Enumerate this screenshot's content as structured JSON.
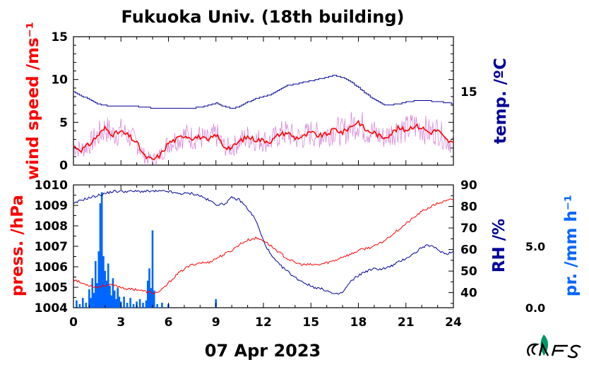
{
  "title": "Fukuoka Univ. (18th building)",
  "date_label": "07 Apr 2023",
  "colors": {
    "wind": "#ff0000",
    "wind_raw": "#cc66cc",
    "temp": "#000099",
    "press": "#ff0000",
    "rh": "#000099",
    "precip": "#0066ff",
    "logo": "#009966"
  },
  "chart_data": [
    {
      "type": "line",
      "panel": "top",
      "ylabel_left": "wind speed /ms⁻¹",
      "ylabel_right": "temp. /ºC",
      "xlim": [
        0,
        24
      ],
      "xticks": [
        0,
        3,
        6,
        9,
        12,
        15,
        18,
        21,
        24
      ],
      "ylim_left": [
        0,
        15
      ],
      "yticks_left": [
        0,
        5,
        10,
        15
      ],
      "yticks_right": [
        15
      ],
      "grid": false,
      "series": [
        {
          "axis": "left",
          "x": [
            0,
            0.5,
            1,
            1.5,
            2,
            2.5,
            3,
            3.5,
            4,
            4.5,
            5,
            5.5,
            6,
            6.5,
            7,
            7.5,
            8,
            8.5,
            9,
            9.5,
            10,
            10.5,
            11,
            11.5,
            12,
            12.5,
            13,
            13.5,
            14,
            14.5,
            15,
            15.5,
            16,
            16.5,
            17,
            17.5,
            18,
            18.5,
            19,
            19.5,
            20,
            20.5,
            21,
            21.5,
            22,
            22.5,
            23,
            23.5,
            24
          ],
          "values": [
            2.2,
            1.8,
            2.4,
            3.4,
            4.3,
            3.6,
            3.9,
            3.4,
            2.6,
            1.0,
            0.6,
            1.2,
            2.6,
            3.0,
            3.5,
            3.2,
            3.3,
            2.8,
            3.6,
            2.2,
            2.0,
            2.8,
            3.3,
            3.0,
            2.9,
            2.8,
            3.6,
            3.8,
            3.2,
            3.3,
            3.8,
            3.4,
            3.6,
            4.2,
            3.8,
            4.5,
            5.1,
            4.0,
            3.8,
            3.2,
            3.6,
            4.3,
            4.1,
            4.6,
            4.4,
            3.8,
            4.1,
            3.0,
            2.5
          ]
        },
        {
          "axis": "right",
          "x": [
            0,
            0.5,
            1,
            1.5,
            2,
            2.5,
            3,
            3.5,
            4,
            4.5,
            5,
            5.5,
            6,
            6.5,
            7,
            7.5,
            8,
            8.5,
            9,
            9.5,
            10,
            10.5,
            11,
            11.5,
            12,
            12.5,
            13,
            13.5,
            14,
            14.5,
            15,
            15.5,
            16,
            16.5,
            17,
            17.5,
            18,
            18.5,
            19,
            19.5,
            20,
            20.5,
            21,
            21.5,
            22,
            22.5,
            23,
            23.5,
            24
          ],
          "values": [
            15.0,
            14.2,
            13.6,
            12.8,
            12.5,
            12.4,
            12.4,
            12.3,
            12.3,
            12.2,
            12.0,
            12.0,
            12.0,
            12.0,
            12.0,
            12.0,
            12.2,
            12.5,
            12.9,
            12.3,
            12.0,
            12.3,
            13.1,
            13.8,
            14.1,
            14.5,
            15.4,
            16.1,
            16.4,
            16.7,
            17.0,
            17.3,
            17.6,
            18.0,
            17.5,
            16.8,
            15.7,
            14.6,
            13.5,
            12.7,
            12.6,
            12.8,
            13.1,
            13.3,
            13.4,
            13.3,
            13.2,
            13.0,
            12.8
          ]
        }
      ]
    },
    {
      "type": "line",
      "panel": "bottom",
      "xlabel": "07 Apr 2023",
      "ylabel_left": "press. /hPa",
      "ylabel_right": "RH /%",
      "ylabel_right2": "pr. /mm h⁻¹",
      "xlim": [
        0,
        24
      ],
      "xticks": [
        0,
        3,
        6,
        9,
        12,
        15,
        18,
        21,
        24
      ],
      "ylim_left": [
        1004,
        1010
      ],
      "yticks_left": [
        1004,
        1005,
        1006,
        1007,
        1008,
        1009,
        1010
      ],
      "ylim_right": [
        33,
        90
      ],
      "yticks_right": [
        40,
        50,
        60,
        70,
        80,
        90
      ],
      "ylim_right2": [
        0,
        10
      ],
      "yticks_right2": [
        "0.0",
        "5.0"
      ],
      "grid": false,
      "series": [
        {
          "axis": "left",
          "x": [
            0,
            0.5,
            1,
            1.5,
            2,
            2.5,
            3,
            3.5,
            4,
            4.5,
            5,
            5.5,
            6,
            6.5,
            7,
            7.5,
            8,
            8.5,
            9,
            9.5,
            10,
            10.5,
            11,
            11.5,
            12,
            12.5,
            13,
            13.5,
            14,
            14.5,
            15,
            15.5,
            16,
            16.5,
            17,
            17.5,
            18,
            18.5,
            19,
            19.5,
            20,
            20.5,
            21,
            21.5,
            22,
            22.5,
            23,
            23.5,
            24
          ],
          "values": [
            1005.4,
            1005.2,
            1005.1,
            1005.0,
            1005.1,
            1005.1,
            1005.0,
            1004.9,
            1004.9,
            1004.8,
            1004.7,
            1004.8,
            1005.2,
            1005.6,
            1005.9,
            1006.1,
            1006.2,
            1006.2,
            1006.4,
            1006.6,
            1006.8,
            1007.1,
            1007.3,
            1007.4,
            1007.3,
            1007.0,
            1006.7,
            1006.4,
            1006.2,
            1006.1,
            1006.1,
            1006.1,
            1006.2,
            1006.3,
            1006.5,
            1006.6,
            1006.8,
            1006.9,
            1007.0,
            1007.2,
            1007.5,
            1007.8,
            1008.1,
            1008.4,
            1008.7,
            1008.9,
            1009.1,
            1009.2,
            1009.3
          ]
        },
        {
          "axis": "right",
          "x": [
            0,
            0.5,
            1,
            1.5,
            2,
            2.5,
            3,
            3.5,
            4,
            4.5,
            5,
            5.5,
            6,
            6.5,
            7,
            7.5,
            8,
            8.5,
            9,
            9.5,
            10,
            10.5,
            11,
            11.5,
            12,
            12.5,
            13,
            13.5,
            14,
            14.5,
            15,
            15.5,
            16,
            16.5,
            17,
            17.5,
            18,
            18.5,
            19,
            19.5,
            20,
            20.5,
            21,
            21.5,
            22,
            22.5,
            23,
            23.5,
            24
          ],
          "values": [
            81,
            83,
            84,
            85,
            86,
            87,
            87,
            87,
            87,
            87,
            87,
            87,
            87,
            86,
            86,
            86,
            85,
            83,
            81,
            81,
            84,
            83,
            79,
            74,
            64,
            57,
            53,
            50,
            47,
            45,
            43,
            42,
            41,
            39,
            40,
            45,
            48,
            50,
            51,
            51,
            52,
            54,
            56,
            58,
            61,
            62,
            60,
            58,
            59
          ]
        },
        {
          "axis": "right2",
          "type": "bar",
          "x": [
            0.2,
            0.4,
            0.6,
            0.8,
            1.0,
            1.1,
            1.2,
            1.3,
            1.4,
            1.5,
            1.6,
            1.7,
            1.8,
            1.9,
            2.0,
            2.1,
            2.2,
            2.3,
            2.4,
            2.5,
            2.6,
            2.7,
            2.8,
            2.9,
            3.0,
            3.2,
            3.4,
            3.6,
            3.8,
            4.0,
            4.2,
            4.4,
            4.6,
            4.7,
            4.8,
            4.9,
            5.0,
            5.1,
            5.3,
            5.6,
            6.0,
            9.0
          ],
          "values": [
            0.6,
            0.3,
            0.8,
            0.4,
            1.5,
            0.8,
            2.4,
            1.2,
            3.8,
            2.0,
            4.6,
            8.5,
            9.4,
            4.2,
            3.0,
            2.2,
            3.6,
            1.8,
            1.0,
            2.4,
            1.4,
            0.7,
            1.6,
            0.9,
            0.5,
            0.9,
            0.4,
            0.8,
            0.3,
            0.5,
            0.7,
            0.4,
            0.6,
            2.2,
            3.2,
            1.6,
            6.3,
            1.4,
            0.3,
            0.4,
            0.3,
            0.7
          ]
        }
      ]
    }
  ]
}
